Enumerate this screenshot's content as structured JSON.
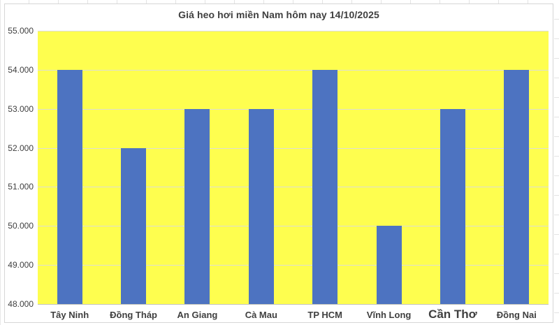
{
  "chart_data": {
    "type": "bar",
    "title": "Giá heo hơi miền Nam hôm nay 14/10/2025",
    "categories": [
      "Tây Ninh",
      "Đồng Tháp",
      "An Giang",
      "Cà Mau",
      "TP HCM",
      "Vĩnh Long",
      "Cần Thơ",
      "Đồng Nai"
    ],
    "values": [
      54000,
      52000,
      53000,
      53000,
      54000,
      50000,
      53000,
      54000
    ],
    "xlabel": "",
    "ylabel": "",
    "ylim": [
      48000,
      55000
    ],
    "ytick_step": 1000,
    "ytick_labels": [
      "48.000",
      "49.000",
      "50.000",
      "51.000",
      "52.000",
      "53.000",
      "54.000",
      "55.000"
    ],
    "grid": true,
    "legend_position": "none",
    "emphasized_category": "Cần Thơ",
    "colors": {
      "bar": "#4d73c1",
      "plot_background": "#fefe4f",
      "gridline": "#dededo_fix",
      "gridline_hex": "#deded2",
      "axis_line": "#c4c4bc",
      "text": "#3f3f3f",
      "chart_border": "#d6d6d6"
    }
  }
}
